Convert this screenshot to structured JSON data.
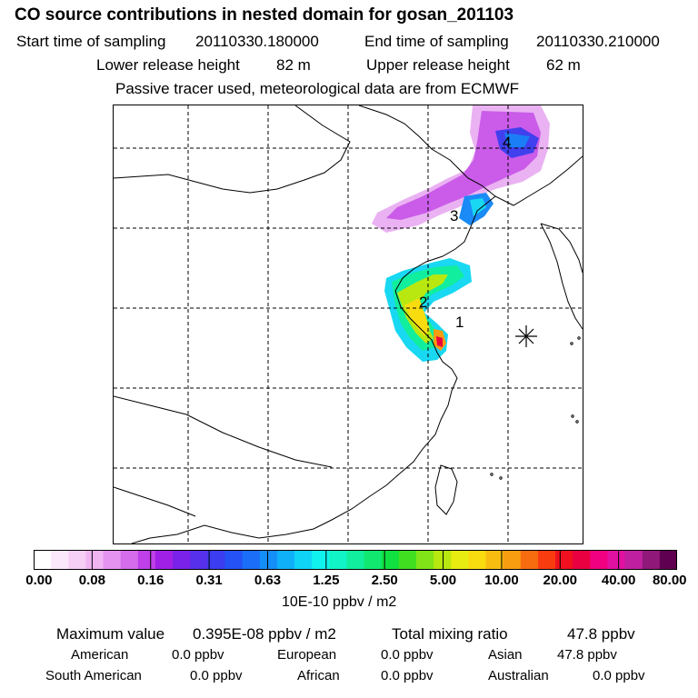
{
  "header": {
    "title": "CO  source contributions in nested domain for gosan_201103",
    "start_label": "Start time of sampling",
    "start_value": "20110330.180000",
    "end_label": "End time of sampling",
    "end_value": "20110330.210000",
    "lower_label": "Lower release height",
    "lower_value": "82 m",
    "upper_label": "Upper release height",
    "upper_value": "62 m",
    "note": "Passive tracer used, meteorological data are from ECMWF"
  },
  "map": {
    "point_labels": [
      "1",
      "2",
      "3",
      "4"
    ],
    "receptor_marker": "asterisk-marker"
  },
  "colorbar": {
    "ticks": [
      "0.00",
      "0.08",
      "0.16",
      "0.31",
      "0.63",
      "1.25",
      "2.50",
      "5.00",
      "10.00",
      "20.00",
      "40.00",
      "80.00"
    ],
    "units": "10E-10 ppbv / m2",
    "colors": [
      "#ffffff",
      "#fbe8fb",
      "#f6cff7",
      "#f0b4f2",
      "#e493f0",
      "#d46cec",
      "#bf3fe8",
      "#a020e6",
      "#7a22ea",
      "#5630ea",
      "#3a3ef0",
      "#2452f5",
      "#1a6ef7",
      "#148ef8",
      "#10b0f8",
      "#10d4f6",
      "#10f2ee",
      "#10f4c8",
      "#10ee9e",
      "#10e870",
      "#10e040",
      "#40e020",
      "#80e418",
      "#b8e810",
      "#e8ec10",
      "#f8dc10",
      "#f8bc10",
      "#f89c10",
      "#f86c10",
      "#f83c10",
      "#f01020",
      "#e80040",
      "#f00080",
      "#e010a0",
      "#c020a0",
      "#901878",
      "#600050"
    ]
  },
  "stats": {
    "max_label": "Maximum value",
    "max_value": "0.395E-08 ppbv / m2",
    "total_label": "Total mixing ratio",
    "total_value": "47.8 ppbv",
    "regions": [
      {
        "name": "American",
        "value": "0.0 ppbv"
      },
      {
        "name": "European",
        "value": "0.0 ppbv"
      },
      {
        "name": "Asian",
        "value": "47.8 ppbv"
      },
      {
        "name": "South American",
        "value": "0.0 ppbv"
      },
      {
        "name": "African",
        "value": "0.0 ppbv"
      },
      {
        "name": "Australian",
        "value": "0.0 ppbv"
      }
    ]
  }
}
